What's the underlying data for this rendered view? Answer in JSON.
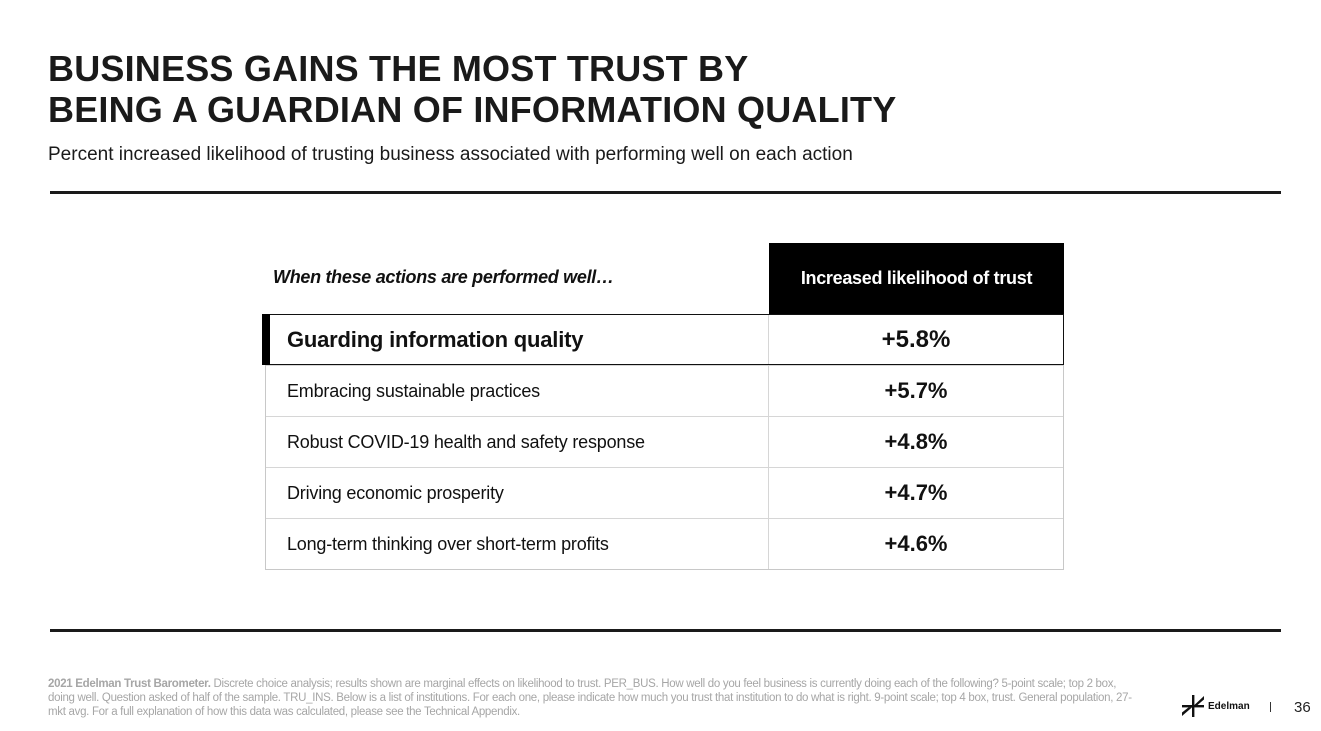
{
  "header": {
    "title_line1": "BUSINESS GAINS THE MOST TRUST BY",
    "title_line2": "BEING A GUARDIAN OF INFORMATION QUALITY",
    "subtitle": "Percent increased likelihood of trusting business associated with performing well on each action"
  },
  "table": {
    "columns": [
      "When these actions are performed well…",
      "Increased likelihood of trust"
    ],
    "rows": [
      {
        "action": "Guarding information quality",
        "value": "+5.8%"
      },
      {
        "action": "Embracing sustainable practices",
        "value": "+5.7%"
      },
      {
        "action": "Robust COVID-19 health and safety response",
        "value": "+4.8%"
      },
      {
        "action": "Driving economic prosperity",
        "value": "+4.7%"
      },
      {
        "action": "Long-term thinking over short-term profits",
        "value": "+4.6%"
      }
    ]
  },
  "footer": {
    "source_bold": "2021 Edelman Trust Barometer.",
    "source_text": " Discrete choice analysis; results shown are marginal effects on likelihood to trust. PER_BUS. How well do you feel business is currently doing each of the following? 5-point scale; top 2 box, doing well. Question asked of half of the sample. TRU_INS. Below is a list of institutions. For each one, please indicate how much you trust that institution to do what is right. 9-point scale; top 4 box, trust. General population, 27-mkt avg. For a full explanation of how this data was calculated, please see the Technical Appendix.",
    "logo_text": "Edelman",
    "logo_icon": "edelman-logo-icon",
    "page_number": "36"
  },
  "colors": {
    "text": "#1a1a1a",
    "header_bg": "#000000",
    "footnote": "#a6a6a6"
  }
}
